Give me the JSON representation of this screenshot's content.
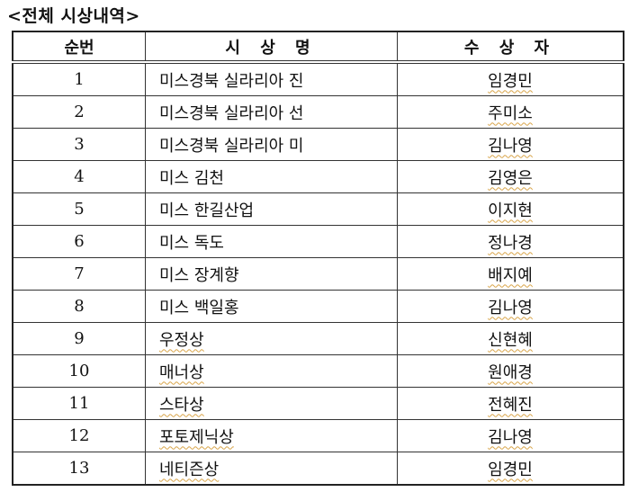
{
  "title": "<전체 시상내역>",
  "table": {
    "headers": [
      "순번",
      "시 상 명",
      "수 상 자"
    ],
    "rows": [
      {
        "no": "1",
        "award": "미스경북 실라리아 진",
        "winner": "임경민"
      },
      {
        "no": "2",
        "award": "미스경북 실라리아 선",
        "winner": "주미소"
      },
      {
        "no": "3",
        "award": "미스경북 실라리아 미",
        "winner": "김나영"
      },
      {
        "no": "4",
        "award": "미스 김천",
        "winner": "김영은"
      },
      {
        "no": "5",
        "award": "미스 한길산업",
        "winner": "이지현"
      },
      {
        "no": "6",
        "award": "미스 독도",
        "winner": "정나경"
      },
      {
        "no": "7",
        "award": "미스 장계향",
        "winner": "배지예"
      },
      {
        "no": "8",
        "award": "미스 백일홍",
        "winner": "김나영"
      },
      {
        "no": "9",
        "award": "우정상",
        "winner": "신현혜"
      },
      {
        "no": "10",
        "award": "매너상",
        "winner": "원애경"
      },
      {
        "no": "11",
        "award": "스타상",
        "winner": "전혜진"
      },
      {
        "no": "12",
        "award": "포토제닉상",
        "winner": "김나영"
      },
      {
        "no": "13",
        "award": "네티즌상",
        "winner": "임경민"
      }
    ]
  },
  "colors": {
    "spellcheck_underline": "#d9a54a",
    "border": "#222222"
  }
}
